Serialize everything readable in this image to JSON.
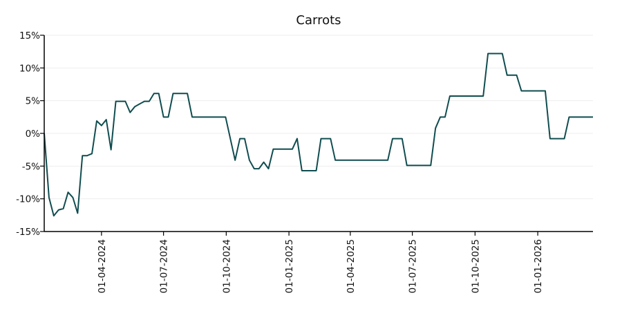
{
  "chart_data": {
    "type": "line",
    "title": "Carrots",
    "xlabel": "",
    "ylabel": "",
    "x_range": [
      "2024-01-08",
      "2026-03-23"
    ],
    "ylim": [
      -15,
      15
    ],
    "y_ticks": [
      15,
      10,
      5,
      0,
      -5,
      -10,
      -15
    ],
    "y_tick_labels": [
      "15%",
      "10%",
      "5%",
      "0%",
      "-5%",
      "-10%",
      "-15%"
    ],
    "x_ticks": [
      "2024-04-01",
      "2024-07-01",
      "2024-10-01",
      "2025-01-01",
      "2025-04-01",
      "2025-07-01",
      "2025-10-01",
      "2026-01-01"
    ],
    "x_tick_labels": [
      "01-04-2024",
      "01-07-2024",
      "01-10-2024",
      "01-01-2025",
      "01-04-2025",
      "01-07-2025",
      "01-10-2025",
      "01-01-2026"
    ],
    "grid": true,
    "line_color": "#0f4c4f",
    "series": [
      {
        "x": [
          "2024-01-08",
          "2024-01-15",
          "2024-01-22",
          "2024-01-29",
          "2024-02-05",
          "2024-02-12",
          "2024-02-19",
          "2024-02-26",
          "2024-03-04",
          "2024-03-11",
          "2024-03-18",
          "2024-03-25",
          "2024-04-01",
          "2024-04-08",
          "2024-04-15",
          "2024-04-22",
          "2024-04-29",
          "2024-05-06",
          "2024-05-13",
          "2024-05-20",
          "2024-05-27",
          "2024-06-03",
          "2024-06-10",
          "2024-06-17",
          "2024-06-24",
          "2024-07-01",
          "2024-07-08",
          "2024-07-15",
          "2024-07-22",
          "2024-07-29",
          "2024-08-05",
          "2024-08-12",
          "2024-08-19",
          "2024-08-26",
          "2024-09-02",
          "2024-09-09",
          "2024-09-16",
          "2024-09-23",
          "2024-09-30",
          "2024-10-07",
          "2024-10-14",
          "2024-10-21",
          "2024-10-28",
          "2024-11-04",
          "2024-11-11",
          "2024-11-18",
          "2024-11-25",
          "2024-12-02",
          "2024-12-09",
          "2024-12-16",
          "2024-12-23",
          "2024-12-30",
          "2025-01-06",
          "2025-01-13",
          "2025-01-20",
          "2025-01-27",
          "2025-02-03",
          "2025-02-10",
          "2025-02-17",
          "2025-02-24",
          "2025-03-03",
          "2025-03-10",
          "2025-03-17",
          "2025-03-24",
          "2025-03-31",
          "2025-04-07",
          "2025-04-14",
          "2025-04-21",
          "2025-04-28",
          "2025-05-05",
          "2025-05-12",
          "2025-05-19",
          "2025-05-26",
          "2025-06-02",
          "2025-06-09",
          "2025-06-16",
          "2025-06-23",
          "2025-06-30",
          "2025-07-07",
          "2025-07-14",
          "2025-07-21",
          "2025-07-28",
          "2025-08-04",
          "2025-08-11",
          "2025-08-18",
          "2025-08-25",
          "2025-09-01",
          "2025-09-08",
          "2025-09-15",
          "2025-09-22",
          "2025-09-29",
          "2025-10-06",
          "2025-10-13",
          "2025-10-20",
          "2025-10-27",
          "2025-11-03",
          "2025-11-10",
          "2025-11-17",
          "2025-11-24",
          "2025-12-01",
          "2025-12-08",
          "2025-12-15",
          "2025-12-22",
          "2025-12-29",
          "2026-01-05",
          "2026-01-12",
          "2026-01-19",
          "2026-01-26",
          "2026-02-02",
          "2026-02-09",
          "2026-02-16",
          "2026-02-23",
          "2026-03-02",
          "2026-03-09",
          "2026-03-16",
          "2026-03-23"
        ],
        "y": [
          0,
          -9.8,
          -12.6,
          -11.7,
          -11.5,
          -9.0,
          -9.8,
          -12.2,
          -3.4,
          -3.4,
          -3.1,
          1.9,
          1.2,
          2.1,
          -2.5,
          4.9,
          4.9,
          4.9,
          3.2,
          4.1,
          4.5,
          4.9,
          4.9,
          6.1,
          6.1,
          2.5,
          2.5,
          6.1,
          6.1,
          6.1,
          6.1,
          2.5,
          2.5,
          2.5,
          2.5,
          2.5,
          2.5,
          2.5,
          2.5,
          -0.8,
          -4.1,
          -0.8,
          -0.8,
          -4.1,
          -5.4,
          -5.4,
          -4.4,
          -5.4,
          -2.4,
          -2.4,
          -2.4,
          -2.4,
          -2.4,
          -0.8,
          -5.7,
          -5.7,
          -5.7,
          -5.7,
          -0.8,
          -0.8,
          -0.8,
          -4.1,
          -4.1,
          -4.1,
          -4.1,
          -4.1,
          -4.1,
          -4.1,
          -4.1,
          -4.1,
          -4.1,
          -4.1,
          -4.1,
          -0.8,
          -0.8,
          -0.8,
          -4.9,
          -4.9,
          -4.9,
          -4.9,
          -4.9,
          -4.9,
          0.8,
          2.5,
          2.5,
          5.7,
          5.7,
          5.7,
          5.7,
          5.7,
          5.7,
          5.7,
          5.7,
          12.2,
          12.2,
          12.2,
          12.2,
          8.9,
          8.9,
          8.9,
          6.5,
          6.5,
          6.5,
          6.5,
          6.5,
          6.5,
          -0.8,
          -0.8,
          -0.8,
          -0.8,
          2.5,
          2.5,
          2.5,
          2.5,
          2.5,
          2.5
        ]
      }
    ]
  }
}
